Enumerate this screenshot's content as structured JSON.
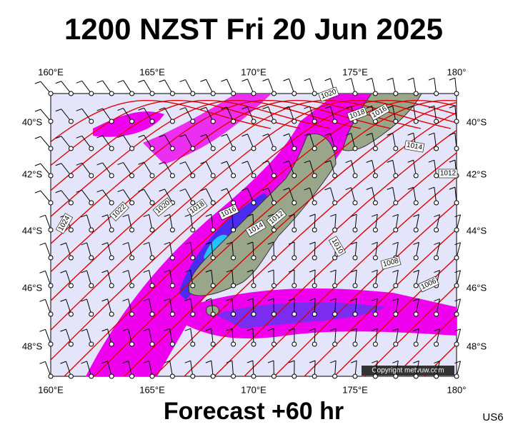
{
  "header": {
    "title": "1200 NZST Fri 20 Jun 2025"
  },
  "footer": {
    "forecast": "Forecast +60 hr",
    "code": "US6",
    "copyright": "Copyright metvuw.com"
  },
  "lon_labels": [
    "160°E",
    "165°E",
    "170°E",
    "175°E",
    "180°"
  ],
  "lat_labels": [
    "40°S",
    "42°S",
    "44°S",
    "46°S",
    "48°S"
  ],
  "isobar_labels": [
    "1020",
    "1018",
    "1016",
    "1014",
    "1012",
    "1024",
    "1022",
    "1020",
    "1018",
    "1016",
    "1014",
    "1012",
    "1010",
    "1008",
    "1006"
  ]
}
